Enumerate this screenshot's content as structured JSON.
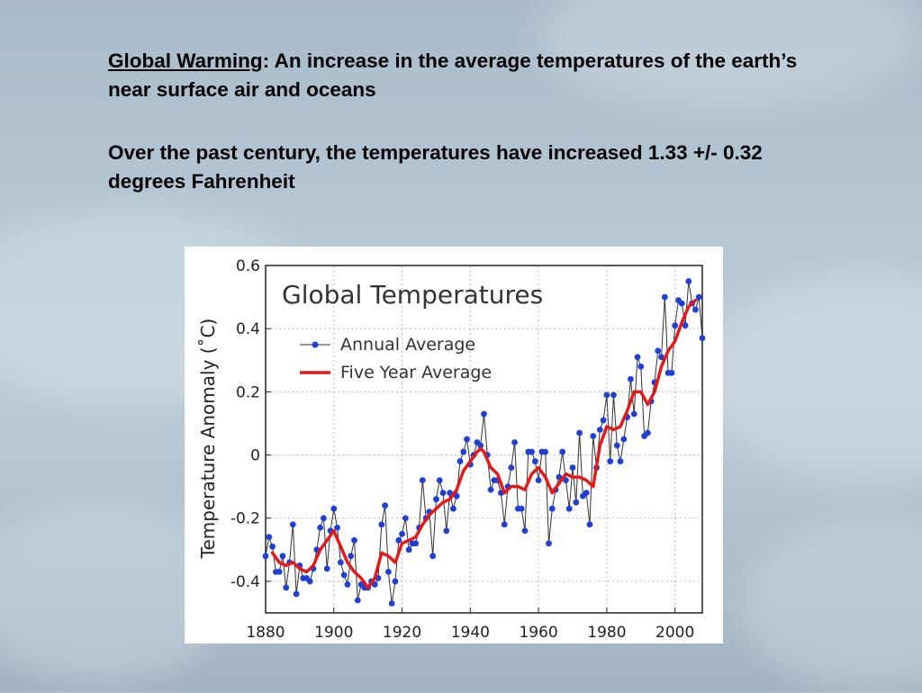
{
  "slide": {
    "para1_term": "Global Warming",
    "para1_rest": ": An increase in the average temperatures of the earth’s near surface air and oceans",
    "para2": "Over the past century, the temperatures have increased 1.33 +/- 0.32 degrees Fahrenheit"
  },
  "colors": {
    "annual": "#1f3fd6",
    "line": "#333333",
    "five_year": "#e31a1a"
  },
  "chart_data": {
    "type": "line",
    "title": "Global Temperatures",
    "xlabel": "",
    "ylabel": "Temperature Anomaly (˚C)",
    "xlim": [
      1880,
      2008
    ],
    "ylim": [
      -0.5,
      0.6
    ],
    "xticks": [
      1880,
      1900,
      1920,
      1940,
      1960,
      1980,
      2000
    ],
    "xtick_labels": [
      "1880",
      "1900",
      "1920",
      "1940",
      "1960",
      "1980",
      "2000"
    ],
    "yticks": [
      -0.4,
      -0.2,
      0,
      0.2,
      0.4,
      0.6
    ],
    "ytick_labels": [
      "-0.4",
      "-0.2",
      "0",
      "0.2",
      "0.4",
      "0.6"
    ],
    "grid": true,
    "legend_position": "top-left",
    "series": [
      {
        "name": "Annual Average",
        "x": [
          1880,
          1881,
          1882,
          1883,
          1884,
          1885,
          1886,
          1887,
          1888,
          1889,
          1890,
          1891,
          1892,
          1893,
          1894,
          1895,
          1896,
          1897,
          1898,
          1899,
          1900,
          1901,
          1902,
          1903,
          1904,
          1905,
          1906,
          1907,
          1908,
          1909,
          1910,
          1911,
          1912,
          1913,
          1914,
          1915,
          1916,
          1917,
          1918,
          1919,
          1920,
          1921,
          1922,
          1923,
          1924,
          1925,
          1926,
          1927,
          1928,
          1929,
          1930,
          1931,
          1932,
          1933,
          1934,
          1935,
          1936,
          1937,
          1938,
          1939,
          1940,
          1941,
          1942,
          1943,
          1944,
          1945,
          1946,
          1947,
          1948,
          1949,
          1950,
          1951,
          1952,
          1953,
          1954,
          1955,
          1956,
          1957,
          1958,
          1959,
          1960,
          1961,
          1962,
          1963,
          1964,
          1965,
          1966,
          1967,
          1968,
          1969,
          1970,
          1971,
          1972,
          1973,
          1974,
          1975,
          1976,
          1977,
          1978,
          1979,
          1980,
          1981,
          1982,
          1983,
          1984,
          1985,
          1986,
          1987,
          1988,
          1989,
          1990,
          1991,
          1992,
          1993,
          1994,
          1995,
          1996,
          1997,
          1998,
          1999,
          2000,
          2001,
          2002,
          2003,
          2004,
          2005,
          2006,
          2007,
          2008
        ],
        "values": [
          -0.32,
          -0.26,
          -0.29,
          -0.37,
          -0.37,
          -0.32,
          -0.42,
          -0.34,
          -0.22,
          -0.44,
          -0.35,
          -0.39,
          -0.39,
          -0.4,
          -0.36,
          -0.3,
          -0.23,
          -0.2,
          -0.36,
          -0.24,
          -0.17,
          -0.23,
          -0.34,
          -0.38,
          -0.41,
          -0.32,
          -0.27,
          -0.46,
          -0.41,
          -0.42,
          -0.42,
          -0.4,
          -0.41,
          -0.39,
          -0.22,
          -0.16,
          -0.37,
          -0.47,
          -0.4,
          -0.27,
          -0.25,
          -0.2,
          -0.3,
          -0.28,
          -0.28,
          -0.23,
          -0.08,
          -0.2,
          -0.18,
          -0.32,
          -0.14,
          -0.08,
          -0.12,
          -0.24,
          -0.12,
          -0.17,
          -0.13,
          -0.02,
          0.01,
          0.05,
          -0.03,
          0.0,
          0.04,
          0.03,
          0.13,
          0.0,
          -0.11,
          -0.08,
          -0.08,
          -0.12,
          -0.22,
          -0.1,
          -0.04,
          0.04,
          -0.17,
          -0.17,
          -0.24,
          0.01,
          0.01,
          -0.02,
          -0.08,
          0.01,
          0.01,
          -0.28,
          -0.17,
          -0.11,
          -0.07,
          0.01,
          -0.08,
          -0.17,
          -0.04,
          -0.15,
          0.07,
          -0.13,
          -0.12,
          -0.22,
          0.06,
          -0.04,
          0.08,
          0.11,
          0.19,
          -0.02,
          0.19,
          0.03,
          -0.02,
          0.05,
          0.12,
          0.24,
          0.13,
          0.31,
          0.28,
          0.06,
          0.07,
          0.17,
          0.23,
          0.33,
          0.31,
          0.5,
          0.26,
          0.26,
          0.41,
          0.49,
          0.48,
          0.41,
          0.55,
          0.48,
          0.46,
          0.5,
          0.37
        ]
      },
      {
        "name": "Five Year Average",
        "x": [
          1882,
          1884,
          1886,
          1888,
          1890,
          1892,
          1894,
          1896,
          1898,
          1900,
          1902,
          1904,
          1906,
          1908,
          1910,
          1912,
          1914,
          1916,
          1918,
          1920,
          1922,
          1924,
          1926,
          1928,
          1930,
          1932,
          1934,
          1936,
          1938,
          1940,
          1942,
          1943,
          1944,
          1946,
          1948,
          1950,
          1952,
          1954,
          1956,
          1958,
          1960,
          1962,
          1964,
          1966,
          1968,
          1970,
          1972,
          1974,
          1976,
          1978,
          1980,
          1982,
          1984,
          1986,
          1988,
          1990,
          1992,
          1994,
          1996,
          1998,
          2000,
          2002,
          2004,
          2006
        ],
        "values": [
          -0.31,
          -0.34,
          -0.35,
          -0.34,
          -0.36,
          -0.37,
          -0.35,
          -0.3,
          -0.27,
          -0.24,
          -0.29,
          -0.34,
          -0.37,
          -0.39,
          -0.42,
          -0.39,
          -0.31,
          -0.32,
          -0.34,
          -0.28,
          -0.27,
          -0.26,
          -0.22,
          -0.19,
          -0.17,
          -0.15,
          -0.14,
          -0.11,
          -0.05,
          -0.02,
          0.01,
          0.02,
          0.01,
          -0.04,
          -0.06,
          -0.12,
          -0.1,
          -0.1,
          -0.11,
          -0.06,
          -0.04,
          -0.07,
          -0.12,
          -0.09,
          -0.06,
          -0.07,
          -0.07,
          -0.08,
          -0.1,
          0.03,
          0.09,
          0.08,
          0.09,
          0.14,
          0.2,
          0.2,
          0.16,
          0.2,
          0.28,
          0.33,
          0.36,
          0.42,
          0.47,
          0.49
        ]
      }
    ]
  }
}
